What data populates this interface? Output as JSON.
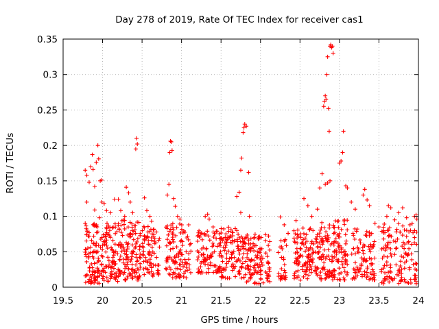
{
  "chart_data": {
    "type": "scatter",
    "title": "Day 278 of 2019, Rate Of TEC Index for receiver cas1",
    "xlabel": "GPS time / hours",
    "ylabel": "ROTI / TECUs",
    "xlim": [
      19.5,
      24
    ],
    "ylim": [
      0,
      0.35
    ],
    "xticks": [
      19.5,
      20,
      20.5,
      21,
      21.5,
      22,
      22.5,
      23,
      23.5,
      24
    ],
    "xtick_labels": [
      "19.5",
      "20",
      "20.5",
      "21",
      "21.5",
      "22",
      "22.5",
      "23",
      "23.5",
      "24"
    ],
    "yticks": [
      0,
      0.05,
      0.1,
      0.15,
      0.2,
      0.25,
      0.3,
      0.35
    ],
    "ytick_labels": [
      "0",
      "0.05",
      "0.1",
      "0.15",
      "0.2",
      "0.25",
      "0.3",
      "0.35"
    ],
    "grid": true,
    "marker": "+",
    "color": "#ff0000",
    "series": [
      {
        "name": "ROTI",
        "points": [
          [
            19.78,
            0.165
          ],
          [
            19.8,
            0.158
          ],
          [
            19.83,
            0.148
          ],
          [
            19.85,
            0.17
          ],
          [
            19.87,
            0.187
          ],
          [
            19.88,
            0.166
          ],
          [
            19.9,
            0.142
          ],
          [
            19.92,
            0.176
          ],
          [
            19.94,
            0.2
          ],
          [
            19.95,
            0.181
          ],
          [
            19.97,
            0.15
          ],
          [
            19.99,
            0.151
          ],
          [
            19.78,
            0.09
          ],
          [
            19.8,
            0.12
          ],
          [
            19.83,
            0.077
          ],
          [
            19.86,
            0.066
          ],
          [
            19.88,
            0.088
          ],
          [
            19.9,
            0.109
          ],
          [
            19.93,
            0.085
          ],
          [
            19.96,
            0.098
          ],
          [
            19.99,
            0.12
          ],
          [
            20.02,
            0.118
          ],
          [
            20.05,
            0.108
          ],
          [
            20.1,
            0.105
          ],
          [
            20.15,
            0.124
          ],
          [
            20.2,
            0.124
          ],
          [
            20.23,
            0.108
          ],
          [
            20.28,
            0.1
          ],
          [
            20.3,
            0.141
          ],
          [
            20.33,
            0.133
          ],
          [
            20.35,
            0.12
          ],
          [
            20.38,
            0.105
          ],
          [
            20.42,
            0.195
          ],
          [
            20.43,
            0.21
          ],
          [
            20.44,
            0.202
          ],
          [
            20.53,
            0.126
          ],
          [
            20.56,
            0.108
          ],
          [
            20.6,
            0.1
          ],
          [
            20.62,
            0.093
          ],
          [
            20.82,
            0.13
          ],
          [
            20.84,
            0.145
          ],
          [
            20.85,
            0.19
          ],
          [
            20.86,
            0.206
          ],
          [
            20.87,
            0.205
          ],
          [
            20.88,
            0.193
          ],
          [
            20.9,
            0.125
          ],
          [
            20.92,
            0.114
          ],
          [
            20.95,
            0.1
          ],
          [
            20.98,
            0.096
          ],
          [
            21.3,
            0.1
          ],
          [
            21.33,
            0.103
          ],
          [
            21.35,
            0.096
          ],
          [
            21.4,
            0.085
          ],
          [
            21.45,
            0.079
          ],
          [
            21.7,
            0.128
          ],
          [
            21.73,
            0.134
          ],
          [
            21.75,
            0.165
          ],
          [
            21.76,
            0.182
          ],
          [
            21.78,
            0.218
          ],
          [
            21.79,
            0.225
          ],
          [
            21.8,
            0.23
          ],
          [
            21.82,
            0.227
          ],
          [
            21.85,
            0.162
          ],
          [
            21.86,
            0.1
          ],
          [
            21.75,
            0.105
          ],
          [
            22.25,
            0.099
          ],
          [
            22.3,
            0.088
          ],
          [
            22.35,
            0.076
          ],
          [
            22.45,
            0.094
          ],
          [
            22.55,
            0.125
          ],
          [
            22.6,
            0.115
          ],
          [
            22.65,
            0.1
          ],
          [
            22.72,
            0.11
          ],
          [
            22.75,
            0.14
          ],
          [
            22.78,
            0.16
          ],
          [
            22.8,
            0.255
          ],
          [
            22.81,
            0.262
          ],
          [
            22.82,
            0.27
          ],
          [
            22.83,
            0.265
          ],
          [
            22.84,
            0.3
          ],
          [
            22.85,
            0.325
          ],
          [
            22.86,
            0.252
          ],
          [
            22.87,
            0.22
          ],
          [
            22.88,
            0.34
          ],
          [
            22.89,
            0.342
          ],
          [
            22.9,
            0.338
          ],
          [
            22.91,
            0.34
          ],
          [
            22.92,
            0.33
          ],
          [
            22.85,
            0.147
          ],
          [
            22.82,
            0.145
          ],
          [
            22.88,
            0.15
          ],
          [
            23.0,
            0.175
          ],
          [
            23.02,
            0.178
          ],
          [
            23.04,
            0.19
          ],
          [
            23.05,
            0.22
          ],
          [
            23.08,
            0.143
          ],
          [
            23.1,
            0.14
          ],
          [
            23.15,
            0.12
          ],
          [
            23.2,
            0.11
          ],
          [
            23.3,
            0.13
          ],
          [
            23.32,
            0.138
          ],
          [
            23.35,
            0.123
          ],
          [
            23.38,
            0.115
          ],
          [
            23.45,
            0.09
          ],
          [
            23.5,
            0.085
          ],
          [
            23.6,
            0.1
          ],
          [
            23.62,
            0.115
          ],
          [
            23.65,
            0.112
          ],
          [
            23.7,
            0.095
          ],
          [
            23.75,
            0.105
          ],
          [
            23.8,
            0.112
          ],
          [
            23.85,
            0.098
          ],
          [
            23.9,
            0.08
          ],
          [
            23.95,
            0.1
          ],
          [
            23.97,
            0.102
          ],
          [
            23.98,
            0.096
          ]
        ],
        "clusters": [
          {
            "x": [
              19.78,
              19.97
            ],
            "y": [
              0.005,
              0.095
            ],
            "count": 90
          },
          {
            "x": [
              19.97,
              20.22
            ],
            "y": [
              0.008,
              0.09
            ],
            "count": 110
          },
          {
            "x": [
              20.22,
              20.48
            ],
            "y": [
              0.01,
              0.095
            ],
            "count": 120
          },
          {
            "x": [
              20.5,
              20.72
            ],
            "y": [
              0.015,
              0.09
            ],
            "count": 80
          },
          {
            "x": [
              20.8,
              21.12
            ],
            "y": [
              0.012,
              0.09
            ],
            "count": 110
          },
          {
            "x": [
              21.2,
              21.5
            ],
            "y": [
              0.02,
              0.08
            ],
            "count": 100
          },
          {
            "x": [
              21.5,
              21.8
            ],
            "y": [
              0.012,
              0.085
            ],
            "count": 110
          },
          {
            "x": [
              21.8,
              22.12
            ],
            "y": [
              0.005,
              0.075
            ],
            "count": 120
          },
          {
            "x": [
              22.22,
              22.33
            ],
            "y": [
              0.01,
              0.07
            ],
            "count": 30
          },
          {
            "x": [
              22.42,
              22.75
            ],
            "y": [
              0.01,
              0.085
            ],
            "count": 130
          },
          {
            "x": [
              22.75,
              23.1
            ],
            "y": [
              0.01,
              0.095
            ],
            "count": 150
          },
          {
            "x": [
              23.15,
              23.45
            ],
            "y": [
              0.01,
              0.085
            ],
            "count": 90
          },
          {
            "x": [
              23.52,
              23.98
            ],
            "y": [
              0.005,
              0.09
            ],
            "count": 140
          }
        ]
      }
    ]
  }
}
